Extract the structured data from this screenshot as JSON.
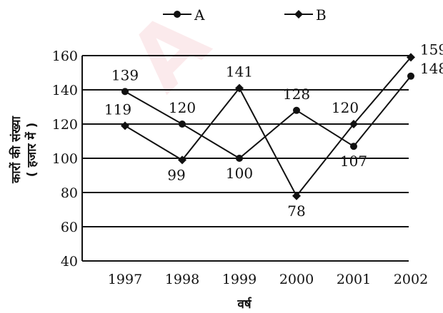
{
  "chart_data": {
    "type": "line",
    "categories": [
      "1997",
      "1998",
      "1999",
      "2000",
      "2001",
      "2002"
    ],
    "series": [
      {
        "name": "A",
        "values": [
          139,
          120,
          100,
          128,
          107,
          148
        ],
        "color": "#111111",
        "marker": "circle"
      },
      {
        "name": "B",
        "values": [
          119,
          99,
          141,
          78,
          120,
          159
        ],
        "color": "#111111",
        "marker": "diamond"
      }
    ],
    "yticks": [
      40,
      60,
      80,
      100,
      120,
      140,
      160
    ],
    "ylim": [
      40,
      160
    ],
    "ylabel_line1": "कारों की संख्या",
    "ylabel_line2": "( हजार में )",
    "xlabel": "वर्ष",
    "grid": "horizontal",
    "legend_placement": "top"
  },
  "watermark_text": "A"
}
